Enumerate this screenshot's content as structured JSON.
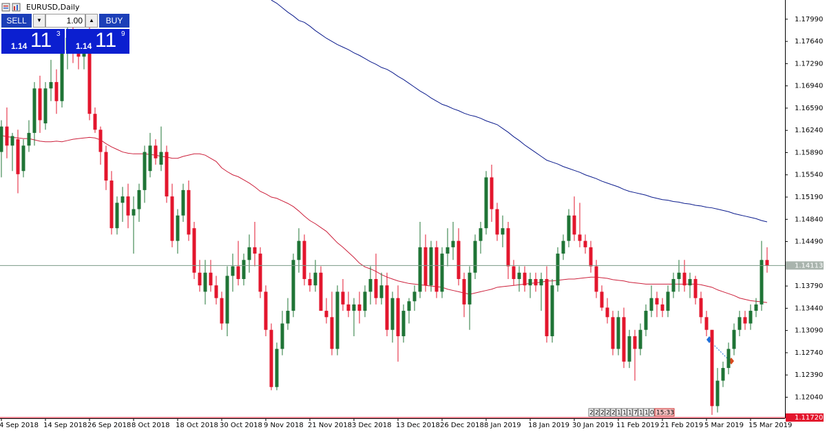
{
  "window": {
    "title": "EURUSD,Daily"
  },
  "trade_panel": {
    "sell": "SELL",
    "lot": "1.00",
    "buy": "BUY",
    "bid": {
      "big": "1.14",
      "pips": "11",
      "point": "3"
    },
    "ask": {
      "big": "1.14",
      "pips": "11",
      "point": "9"
    }
  },
  "countdown_cells": [
    "2",
    "2",
    "2",
    "2",
    "2",
    "1",
    "1",
    "1",
    "7",
    "1",
    "1",
    "0"
  ],
  "countdown": "15:33",
  "chart_data": {
    "type": "candlestick",
    "categories": [
      "4 Sep 2018",
      null,
      null,
      null,
      null,
      null,
      null,
      null,
      "14 Sep 2018",
      null,
      null,
      null,
      null,
      null,
      null,
      null,
      "26 Sep 2018",
      null,
      null,
      null,
      null,
      null,
      null,
      null,
      "8 Oct 2018",
      null,
      null,
      null,
      null,
      null,
      null,
      null,
      "18 Oct 2018",
      null,
      null,
      null,
      null,
      null,
      null,
      null,
      "30 Oct 2018",
      null,
      null,
      null,
      null,
      null,
      null,
      null,
      "9 Nov 2018",
      null,
      null,
      null,
      null,
      null,
      null,
      null,
      "21 Nov 2018",
      null,
      null,
      null,
      null,
      null,
      null,
      null,
      "3 Dec 2018",
      null,
      null,
      null,
      null,
      null,
      null,
      null,
      "13 Dec 2018",
      null,
      null,
      null,
      null,
      null,
      null,
      null,
      "26 Dec 2018",
      null,
      null,
      null,
      null,
      null,
      null,
      null,
      "8 Jan 2019",
      null,
      null,
      null,
      null,
      null,
      null,
      null,
      "18 Jan 2019",
      null,
      null,
      null,
      null,
      null,
      null,
      null,
      "30 Jan 2019",
      null,
      null,
      null,
      null,
      null,
      null,
      null,
      "11 Feb 2019",
      null,
      null,
      null,
      null,
      null,
      null,
      null,
      "21 Feb 2019",
      null,
      null,
      null,
      null,
      null,
      null,
      null,
      "5 Mar 2019",
      null,
      null,
      null,
      null,
      null,
      null,
      null,
      "15 Mar 2019",
      null,
      null,
      null
    ],
    "open": [
      1.159,
      1.163,
      1.16,
      1.161,
      1.156,
      1.16,
      1.162,
      1.169,
      1.1635,
      1.169,
      1.17,
      1.167,
      1.175,
      1.177,
      1.175,
      1.174,
      1.176,
      1.165,
      1.1625,
      1.159,
      1.1545,
      1.147,
      1.151,
      1.152,
      1.149,
      1.15,
      1.153,
      1.156,
      1.16,
      1.157,
      1.159,
      1.152,
      1.145,
      1.149,
      1.153,
      1.147,
      1.14,
      1.137,
      1.14,
      1.138,
      1.136,
      1.132,
      1.1395,
      1.141,
      1.139,
      1.142,
      1.144,
      1.143,
      1.137,
      1.131,
      1.122,
      1.128,
      1.132,
      1.134,
      1.142,
      1.145,
      1.139,
      1.138,
      1.14,
      1.134,
      1.133,
      1.128,
      1.137,
      1.135,
      1.134,
      1.135,
      1.134,
      1.137,
      1.139,
      1.136,
      1.138,
      1.131,
      1.136,
      1.13,
      1.134,
      1.1355,
      1.137,
      1.144,
      1.138,
      1.144,
      1.137,
      1.143,
      1.144,
      1.145,
      1.139,
      1.135,
      1.14,
      1.145,
      1.147,
      1.155,
      1.15,
      1.146,
      1.147,
      1.141,
      1.139,
      1.14,
      1.138,
      1.139,
      1.138,
      1.139,
      1.13,
      1.138,
      1.143,
      1.145,
      1.149,
      1.146,
      1.145,
      1.144,
      1.141,
      1.137,
      1.1345,
      1.133,
      1.128,
      1.133,
      1.126,
      1.13,
      1.128,
      1.131,
      1.134,
      1.136,
      1.135,
      1.134,
      1.137,
      1.139,
      1.14,
      1.138,
      1.139,
      1.136,
      1.133,
      1.131,
      1.119,
      1.123,
      1.125,
      1.128,
      1.131,
      1.133,
      1.132,
      1.134,
      1.135,
      1.142
    ],
    "high": [
      1.164,
      1.166,
      1.162,
      1.1625,
      1.161,
      1.164,
      1.17,
      1.171,
      1.17,
      1.1735,
      1.172,
      1.176,
      1.179,
      1.18,
      1.177,
      1.178,
      1.18,
      1.166,
      1.163,
      1.16,
      1.156,
      1.152,
      1.1535,
      1.154,
      1.152,
      1.154,
      1.16,
      1.162,
      1.161,
      1.163,
      1.16,
      1.154,
      1.15,
      1.154,
      1.1545,
      1.148,
      1.142,
      1.142,
      1.142,
      1.1395,
      1.137,
      1.141,
      1.143,
      1.145,
      1.143,
      1.146,
      1.148,
      1.144,
      1.138,
      1.132,
      1.129,
      1.134,
      1.136,
      1.143,
      1.147,
      1.146,
      1.14,
      1.142,
      1.141,
      1.136,
      1.137,
      1.138,
      1.139,
      1.137,
      1.136,
      1.137,
      1.138,
      1.141,
      1.143,
      1.14,
      1.14,
      1.137,
      1.138,
      1.135,
      1.136,
      1.138,
      1.148,
      1.146,
      1.145,
      1.145,
      1.144,
      1.147,
      1.148,
      1.147,
      1.14,
      1.141,
      1.146,
      1.148,
      1.156,
      1.157,
      1.151,
      1.149,
      1.148,
      1.142,
      1.141,
      1.141,
      1.14,
      1.14,
      1.14,
      1.141,
      1.139,
      1.144,
      1.146,
      1.15,
      1.152,
      1.151,
      1.146,
      1.145,
      1.142,
      1.138,
      1.136,
      1.134,
      1.134,
      1.1345,
      1.131,
      1.131,
      1.132,
      1.135,
      1.138,
      1.137,
      1.136,
      1.138,
      1.14,
      1.142,
      1.142,
      1.14,
      1.1395,
      1.137,
      1.134,
      1.131,
      1.125,
      1.126,
      1.129,
      1.132,
      1.134,
      1.134,
      1.135,
      1.136,
      1.145,
      1.144
    ],
    "low": [
      1.155,
      1.158,
      1.156,
      1.1525,
      1.155,
      1.159,
      1.16,
      1.162,
      1.1625,
      1.167,
      1.165,
      1.166,
      1.172,
      1.173,
      1.172,
      1.172,
      1.164,
      1.162,
      1.157,
      1.153,
      1.146,
      1.146,
      1.148,
      1.147,
      1.143,
      1.148,
      1.151,
      1.155,
      1.157,
      1.156,
      1.151,
      1.144,
      1.143,
      1.148,
      1.145,
      1.139,
      1.137,
      1.135,
      1.137,
      1.135,
      1.131,
      1.13,
      1.137,
      1.138,
      1.138,
      1.14,
      1.141,
      1.136,
      1.13,
      1.1215,
      1.1215,
      1.127,
      1.131,
      1.133,
      1.14,
      1.138,
      1.137,
      1.137,
      1.134,
      1.132,
      1.127,
      1.127,
      1.134,
      1.133,
      1.13,
      1.132,
      1.133,
      1.135,
      1.135,
      1.135,
      1.13,
      1.129,
      1.126,
      1.129,
      1.132,
      1.134,
      1.136,
      1.137,
      1.137,
      1.136,
      1.136,
      1.141,
      1.142,
      1.138,
      1.133,
      1.131,
      1.139,
      1.143,
      1.146,
      1.148,
      1.145,
      1.144,
      1.139,
      1.138,
      1.137,
      1.137,
      1.136,
      1.137,
      1.134,
      1.129,
      1.129,
      1.137,
      1.142,
      1.144,
      1.145,
      1.144,
      1.143,
      1.14,
      1.136,
      1.134,
      1.132,
      1.127,
      1.127,
      1.125,
      1.125,
      1.123,
      1.127,
      1.13,
      1.133,
      1.133,
      1.133,
      1.133,
      1.136,
      1.137,
      1.137,
      1.136,
      1.135,
      1.132,
      1.13,
      1.1176,
      1.118,
      1.122,
      1.124,
      1.127,
      1.13,
      1.131,
      1.131,
      1.133,
      1.134,
      1.14
    ],
    "close": [
      1.163,
      1.16,
      1.1615,
      1.1555,
      1.16,
      1.162,
      1.169,
      1.164,
      1.169,
      1.17,
      1.167,
      1.175,
      1.177,
      1.175,
      1.174,
      1.176,
      1.165,
      1.1625,
      1.159,
      1.1545,
      1.147,
      1.151,
      1.152,
      1.149,
      1.15,
      1.153,
      1.159,
      1.16,
      1.158,
      1.159,
      1.152,
      1.145,
      1.149,
      1.153,
      1.146,
      1.14,
      1.138,
      1.14,
      1.138,
      1.136,
      1.132,
      1.1395,
      1.141,
      1.139,
      1.142,
      1.144,
      1.143,
      1.137,
      1.131,
      1.122,
      1.128,
      1.132,
      1.134,
      1.142,
      1.145,
      1.139,
      1.138,
      1.14,
      1.134,
      1.133,
      1.128,
      1.137,
      1.135,
      1.134,
      1.135,
      1.134,
      1.137,
      1.139,
      1.136,
      1.138,
      1.131,
      1.136,
      1.13,
      1.134,
      1.1355,
      1.137,
      1.144,
      1.138,
      1.144,
      1.137,
      1.143,
      1.144,
      1.145,
      1.139,
      1.135,
      1.14,
      1.145,
      1.147,
      1.155,
      1.15,
      1.146,
      1.147,
      1.141,
      1.139,
      1.14,
      1.138,
      1.139,
      1.138,
      1.139,
      1.13,
      1.138,
      1.143,
      1.145,
      1.149,
      1.146,
      1.145,
      1.144,
      1.141,
      1.137,
      1.1345,
      1.133,
      1.128,
      1.133,
      1.126,
      1.13,
      1.128,
      1.131,
      1.134,
      1.136,
      1.135,
      1.134,
      1.137,
      1.139,
      1.14,
      1.138,
      1.139,
      1.136,
      1.133,
      1.131,
      1.119,
      1.123,
      1.125,
      1.128,
      1.131,
      1.133,
      1.132,
      1.134,
      1.135,
      1.142,
      1.1411
    ],
    "up_color": "#1f7436",
    "down_color": "#e3162d",
    "lines": [
      {
        "color": "#cc1f3a",
        "values": [
          1.1616,
          1.1614,
          1.1613,
          1.1612,
          1.1611,
          1.1611,
          1.1609,
          1.1607,
          1.1606,
          1.1606,
          1.1607,
          1.1606,
          1.1608,
          1.161,
          1.1611,
          1.1612,
          1.1613,
          1.1612,
          1.1609,
          1.1603,
          1.1598,
          1.1594,
          1.159,
          1.1588,
          1.1587,
          1.1587,
          1.1587,
          1.1586,
          1.1585,
          1.1583,
          1.1582,
          1.158,
          1.158,
          1.1583,
          1.1585,
          1.1587,
          1.1587,
          1.1585,
          1.158,
          1.1575,
          1.1565,
          1.1559,
          1.1554,
          1.1551,
          1.1546,
          1.1541,
          1.1535,
          1.1528,
          1.1524,
          1.1519,
          1.1517,
          1.1513,
          1.1509,
          1.1504,
          1.1497,
          1.1489,
          1.1482,
          1.1477,
          1.1471,
          1.1465,
          1.1456,
          1.1447,
          1.144,
          1.1432,
          1.1424,
          1.1415,
          1.1409,
          1.1406,
          1.1402,
          1.1397,
          1.1393,
          1.139,
          1.1387,
          1.1385,
          1.1383,
          1.1382,
          1.1381,
          1.138,
          1.1379,
          1.1378,
          1.1377,
          1.1374,
          1.1372,
          1.137,
          1.1368,
          1.1366,
          1.1368,
          1.137,
          1.1372,
          1.1374,
          1.1377,
          1.1378,
          1.1379,
          1.138,
          1.1381,
          1.1382,
          1.1383,
          1.1384,
          1.1385,
          1.1387,
          1.1387,
          1.1388,
          1.1389,
          1.139,
          1.139,
          1.1391,
          1.1392,
          1.1393,
          1.1393,
          1.1392,
          1.1391,
          1.1389,
          1.1388,
          1.1387,
          1.1385,
          1.1384,
          1.1383,
          1.1382,
          1.1382,
          1.1382,
          1.1382,
          1.1382,
          1.1382,
          1.1382,
          1.1382,
          1.1382,
          1.1382,
          1.1381,
          1.1379,
          1.1377,
          1.1373,
          1.137,
          1.1367,
          1.1364,
          1.136,
          1.1358,
          1.1356,
          1.1355,
          1.1354,
          1.1353
        ]
      },
      {
        "color": "#0a1a8c",
        "values": [
          null,
          null,
          null,
          null,
          null,
          null,
          null,
          null,
          null,
          null,
          null,
          null,
          null,
          null,
          null,
          null,
          null,
          null,
          null,
          null,
          null,
          null,
          null,
          null,
          null,
          null,
          null,
          null,
          null,
          null,
          null,
          null,
          null,
          null,
          null,
          null,
          null,
          null,
          null,
          null,
          null,
          null,
          null,
          null,
          null,
          null,
          null,
          null,
          null,
          1.1829,
          1.1824,
          1.1817,
          1.181,
          1.1804,
          1.1797,
          1.1794,
          1.1788,
          1.1781,
          1.1775,
          1.1769,
          1.1764,
          1.1759,
          1.1755,
          1.1751,
          1.1746,
          1.1742,
          1.1737,
          1.1732,
          1.1728,
          1.1723,
          1.172,
          1.1715,
          1.1709,
          1.1704,
          1.1698,
          1.1692,
          1.1686,
          1.1681,
          1.1675,
          1.167,
          1.1665,
          1.1662,
          1.1658,
          1.1655,
          1.1651,
          1.1648,
          1.1646,
          1.1643,
          1.1639,
          1.1636,
          1.1633,
          1.1627,
          1.1621,
          1.1614,
          1.1608,
          1.1601,
          1.1595,
          1.1589,
          1.1583,
          1.1577,
          1.1574,
          1.1571,
          1.1567,
          1.1564,
          1.1561,
          1.1558,
          1.1554,
          1.1551,
          1.1548,
          1.1544,
          1.1541,
          1.1538,
          1.1535,
          1.1531,
          1.1528,
          1.1526,
          1.1524,
          1.1522,
          1.1519,
          1.1517,
          1.1515,
          1.1514,
          1.1512,
          1.1511,
          1.1509,
          1.1508,
          1.1506,
          1.1505,
          1.1503,
          1.1502,
          1.15,
          1.1498,
          1.1496,
          1.1493,
          1.1491,
          1.1489,
          1.1487,
          1.1485,
          1.1482,
          1.148
        ]
      }
    ],
    "ylim": [
      1.1172,
      1.1827
    ],
    "yticks": [
      {
        "value": 1.1799,
        "label": "1.17990"
      },
      {
        "value": 1.1764,
        "label": "1.17640"
      },
      {
        "value": 1.1729,
        "label": "1.17290"
      },
      {
        "value": 1.1694,
        "label": "1.16940"
      },
      {
        "value": 1.1659,
        "label": "1.16590"
      },
      {
        "value": 1.1624,
        "label": "1.16240"
      },
      {
        "value": 1.1589,
        "label": "1.15890"
      },
      {
        "value": 1.1554,
        "label": "1.15540"
      },
      {
        "value": 1.1519,
        "label": "1.15190"
      },
      {
        "value": 1.1484,
        "label": "1.14840"
      },
      {
        "value": 1.1449,
        "label": "1.14490"
      },
      {
        "value": 1.1379,
        "label": "1.13790"
      },
      {
        "value": 1.1344,
        "label": "1.13440"
      },
      {
        "value": 1.1309,
        "label": "1.13090"
      },
      {
        "value": 1.1274,
        "label": "1.12740"
      },
      {
        "value": 1.1239,
        "label": "1.12390"
      },
      {
        "value": 1.1204,
        "label": "1.12040"
      }
    ],
    "current_price": {
      "value": 1.14113,
      "label": "1.14113"
    },
    "low_line": {
      "value": 1.1172,
      "label": "1.11720"
    },
    "grid": false
  }
}
